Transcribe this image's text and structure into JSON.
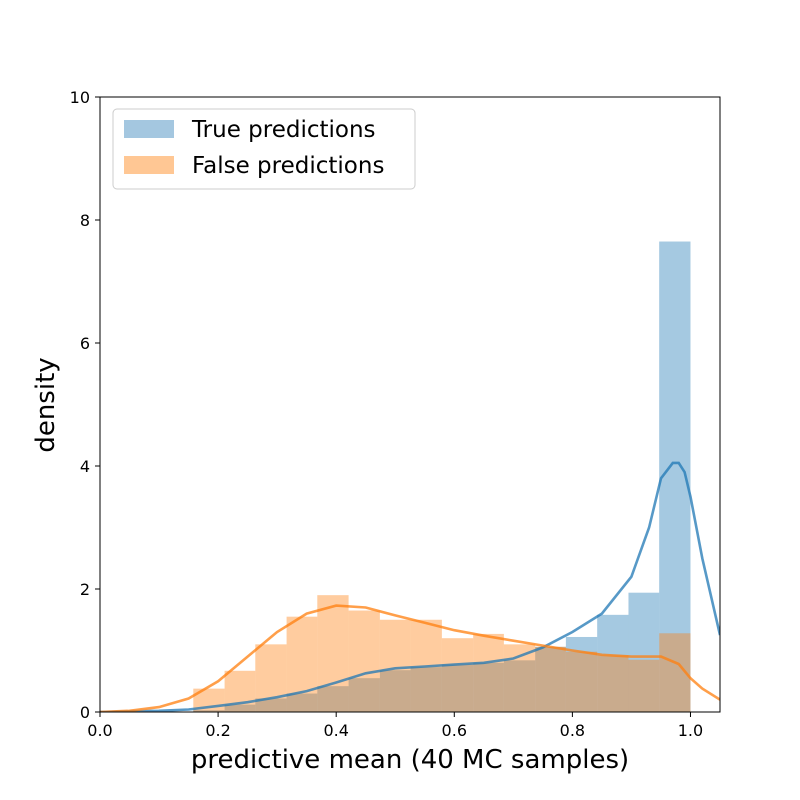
{
  "chart_data": {
    "type": "histogram",
    "xlabel": "predictive mean (40 MC samples)",
    "ylabel": "density",
    "xlim": [
      0.0,
      1.05
    ],
    "ylim": [
      0,
      10
    ],
    "xticks": [
      "0.0",
      "0.2",
      "0.4",
      "0.6",
      "0.8",
      "1.0"
    ],
    "yticks": [
      "0",
      "2",
      "4",
      "6",
      "8",
      "10"
    ],
    "legend_position": "top-left",
    "grid": false,
    "bin_edges": [
      0.158,
      0.211,
      0.263,
      0.316,
      0.368,
      0.421,
      0.474,
      0.526,
      0.579,
      0.632,
      0.684,
      0.737,
      0.789,
      0.842,
      0.895,
      0.947,
      1.0
    ],
    "series": [
      {
        "name": "True predictions",
        "color": "#1f77b4",
        "bar_color": "#a4c7e0",
        "values": [
          0.03,
          0.12,
          0.22,
          0.3,
          0.42,
          0.55,
          0.68,
          0.73,
          0.77,
          0.8,
          0.84,
          1.06,
          1.22,
          1.58,
          1.94,
          7.65
        ],
        "kde": {
          "x": [
            0.0,
            0.1,
            0.15,
            0.2,
            0.25,
            0.3,
            0.35,
            0.4,
            0.45,
            0.5,
            0.55,
            0.6,
            0.65,
            0.7,
            0.75,
            0.8,
            0.85,
            0.9,
            0.93,
            0.95,
            0.97,
            0.98,
            0.99,
            1.0,
            1.02,
            1.05
          ],
          "y": [
            0.0,
            0.02,
            0.04,
            0.1,
            0.16,
            0.24,
            0.34,
            0.48,
            0.63,
            0.71,
            0.74,
            0.77,
            0.8,
            0.87,
            1.05,
            1.3,
            1.6,
            2.2,
            3.0,
            3.8,
            4.05,
            4.05,
            3.9,
            3.5,
            2.5,
            1.25
          ]
        }
      },
      {
        "name": "False predictions",
        "color": "#ff7f0e",
        "bar_color": "#ffc794",
        "values": [
          0.38,
          0.67,
          1.1,
          1.55,
          1.9,
          1.65,
          1.5,
          1.5,
          1.2,
          1.27,
          1.1,
          1.06,
          0.98,
          0.92,
          0.85,
          1.28
        ],
        "kde": {
          "x": [
            0.0,
            0.05,
            0.1,
            0.15,
            0.2,
            0.25,
            0.3,
            0.35,
            0.4,
            0.45,
            0.5,
            0.55,
            0.6,
            0.65,
            0.7,
            0.75,
            0.8,
            0.85,
            0.9,
            0.95,
            0.98,
            1.0,
            1.02,
            1.05
          ],
          "y": [
            0.0,
            0.02,
            0.08,
            0.22,
            0.5,
            0.9,
            1.3,
            1.6,
            1.73,
            1.7,
            1.57,
            1.45,
            1.33,
            1.24,
            1.16,
            1.08,
            1.0,
            0.93,
            0.9,
            0.9,
            0.78,
            0.55,
            0.38,
            0.2
          ]
        }
      }
    ]
  }
}
